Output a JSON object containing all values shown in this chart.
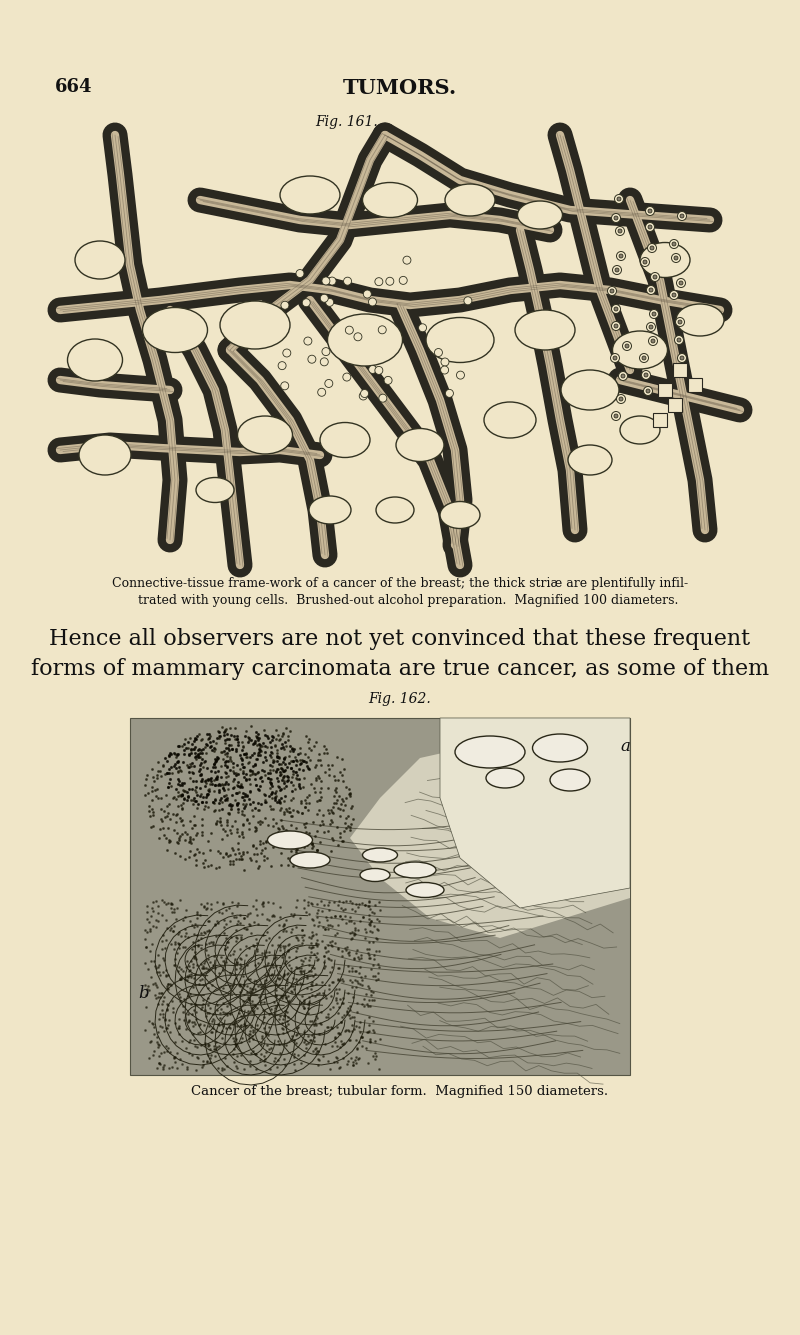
{
  "background_color": "#f0e6c8",
  "page_number": "664",
  "page_header": "TUMORS.",
  "fig1_label": "Fig. 161.",
  "fig2_label": "Fig. 162.",
  "fig1_caption_line1": "Connective-tissue frame-work of a cancer of the breast; the thick striæ are plentifully infil-",
  "fig1_caption_line2": "    trated with young cells.  Brushed-out alcohol preparation.  Magnified 100 diameters.",
  "body_text_line1": "Hence all observers are not yet convinced that these frequent",
  "body_text_line2": "forms of mammary carcinomata are true cancer, as some of them",
  "fig2_caption": "Cancer of the breast; tubular form.  Magnified 150 diameters.",
  "tissue_color": "#8a8070",
  "tissue_dark": "#2a2820",
  "tissue_mid": "#6a6458",
  "lumen_color": "#f0e6c8",
  "fig2_base_color": "#9a9888",
  "fig2_light_color": "#c8c4b0",
  "fig2_dark_color": "#484438"
}
